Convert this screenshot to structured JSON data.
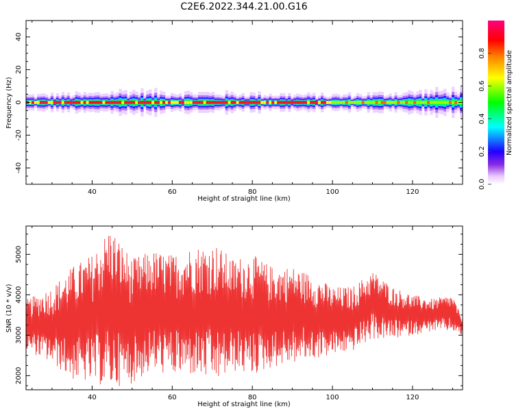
{
  "title": "C2E6.2022.344.21.00.G16",
  "chart_data": [
    {
      "type": "heatmap",
      "xlabel": "Height of straight line (km)",
      "ylabel": "Frequency (Hz)",
      "xlim": [
        23.5,
        132.5
      ],
      "ylim": [
        -50,
        50
      ],
      "xticks": [
        40,
        60,
        80,
        100,
        120
      ],
      "yticks": [
        -40,
        -20,
        0,
        20,
        40
      ],
      "xticklabels": [
        "40",
        "60",
        "80",
        "100",
        "120"
      ],
      "yticklabels": [
        "-40",
        "-20",
        "0",
        "20",
        "40"
      ],
      "description_values": {
        "center_frequency": 0,
        "band_halfwidth_hz": [
          {
            "x": 24,
            "w": 2.5
          },
          {
            "x": 40,
            "w": 3.0
          },
          {
            "x": 48,
            "w": 4.0
          },
          {
            "x": 60,
            "w": 3.5
          },
          {
            "x": 80,
            "w": 3.0
          },
          {
            "x": 100,
            "w": 2.5
          },
          {
            "x": 120,
            "w": 3.5
          },
          {
            "x": 132,
            "w": 4.5
          }
        ]
      },
      "colorbar": {
        "label": "Normalized spectral amplitude",
        "range": [
          0,
          1
        ],
        "ticks": [
          0.0,
          0.2,
          0.4,
          0.6,
          0.8
        ],
        "ticklabels": [
          "0.0",
          "0.2",
          "0.4",
          "0.6",
          "0.8"
        ],
        "colormap": "gist_rainbow_r",
        "colors": [
          "#ffffff",
          "#e9c8ff",
          "#8a2be2",
          "#0000ff",
          "#00ffff",
          "#00ff00",
          "#ffff00",
          "#ff8000",
          "#ff0000",
          "#ff007f"
        ]
      },
      "grid": false
    },
    {
      "type": "line",
      "xlabel": "Height of straight line (km)",
      "ylabel": "SNR (10 * v/v)",
      "xlim": [
        23.5,
        132.5
      ],
      "ylim": [
        1650,
        5700
      ],
      "xticks": [
        40,
        60,
        80,
        100,
        120
      ],
      "yticks": [
        2000,
        3000,
        4000,
        5000
      ],
      "xticklabels": [
        "40",
        "60",
        "80",
        "100",
        "120"
      ],
      "yticklabels": [
        "2000",
        "3000",
        "4000",
        "5000"
      ],
      "series": [
        {
          "color": "#ee3333",
          "envelope": [
            {
              "x": 24,
              "min": 2600,
              "max": 3900
            },
            {
              "x": 30,
              "min": 2300,
              "max": 4200
            },
            {
              "x": 35,
              "min": 1900,
              "max": 4700
            },
            {
              "x": 40,
              "min": 1800,
              "max": 5000
            },
            {
              "x": 44.5,
              "min": 1700,
              "max": 5700
            },
            {
              "x": 50,
              "min": 1800,
              "max": 4900
            },
            {
              "x": 55,
              "min": 2100,
              "max": 5100
            },
            {
              "x": 60,
              "min": 2000,
              "max": 5000
            },
            {
              "x": 65,
              "min": 2000,
              "max": 5200
            },
            {
              "x": 71,
              "min": 1850,
              "max": 5250
            },
            {
              "x": 75,
              "min": 2100,
              "max": 4900
            },
            {
              "x": 80,
              "min": 2000,
              "max": 5000
            },
            {
              "x": 85,
              "min": 2200,
              "max": 4700
            },
            {
              "x": 90,
              "min": 2300,
              "max": 4700
            },
            {
              "x": 95,
              "min": 2400,
              "max": 4500
            },
            {
              "x": 100,
              "min": 2500,
              "max": 4200
            },
            {
              "x": 105,
              "min": 2600,
              "max": 4200
            },
            {
              "x": 110,
              "min": 2900,
              "max": 4600
            },
            {
              "x": 115,
              "min": 2900,
              "max": 4200
            },
            {
              "x": 120,
              "min": 3000,
              "max": 4000
            },
            {
              "x": 125,
              "min": 3100,
              "max": 3900
            },
            {
              "x": 130,
              "min": 3100,
              "max": 4000
            },
            {
              "x": 132,
              "min": 3000,
              "max": 3500
            }
          ]
        }
      ],
      "grid": false
    }
  ]
}
